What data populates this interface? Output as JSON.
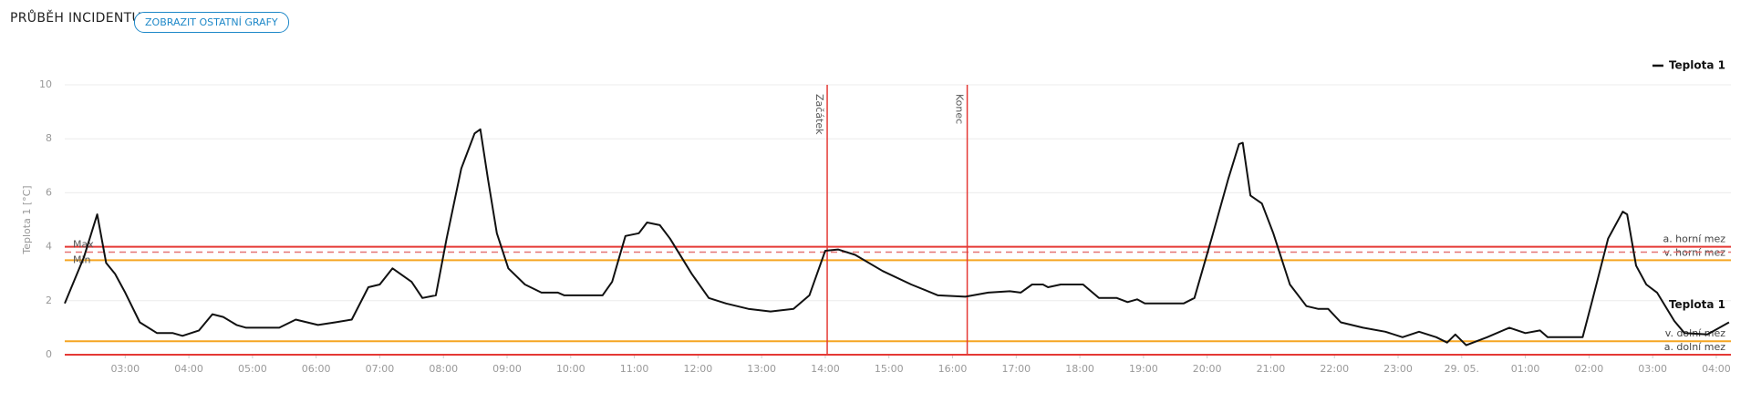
{
  "header": {
    "title": "PRŮBĚH INCIDENTU",
    "button": "ZOBRAZIT OSTATNÍ GRAFY"
  },
  "chart_data": {
    "type": "line",
    "ylabel": "Teplota 1 [°C]",
    "x": [
      2.05,
      2.35,
      2.56,
      2.7,
      2.84,
      3.0,
      3.23,
      3.5,
      3.75,
      3.9,
      4.16,
      4.37,
      4.54,
      4.75,
      4.9,
      5.42,
      5.68,
      6.03,
      6.3,
      6.56,
      6.82,
      7.0,
      7.2,
      7.5,
      7.67,
      7.88,
      8.05,
      8.28,
      8.49,
      8.58,
      8.7,
      8.84,
      9.02,
      9.28,
      9.54,
      9.8,
      9.9,
      10.5,
      10.65,
      10.86,
      11.07,
      11.2,
      11.4,
      11.56,
      11.9,
      12.17,
      12.44,
      12.79,
      13.14,
      13.5,
      13.75,
      14.0,
      14.2,
      14.47,
      14.9,
      15.35,
      15.77,
      16.2,
      16.56,
      16.9,
      17.07,
      17.25,
      17.42,
      17.5,
      17.7,
      18.05,
      18.3,
      18.58,
      18.75,
      18.9,
      19.02,
      19.63,
      19.8,
      20.07,
      20.33,
      20.5,
      20.56,
      20.68,
      20.86,
      21.04,
      21.3,
      21.56,
      21.74,
      21.9,
      22.1,
      22.45,
      22.8,
      23.07,
      23.33,
      23.6,
      23.77,
      23.9,
      24.07,
      24.4,
      24.75,
      25.0,
      25.23,
      25.35,
      25.9,
      26.05,
      26.3,
      26.53,
      26.6,
      26.74,
      26.9,
      27.07,
      27.34,
      27.5,
      27.86,
      28.2
    ],
    "series": [
      {
        "name": "Teplota 1",
        "color": "#111111",
        "values": [
          1.9,
          3.6,
          5.2,
          3.4,
          3.0,
          2.3,
          1.2,
          0.8,
          0.8,
          0.7,
          0.9,
          1.5,
          1.4,
          1.1,
          1.0,
          1.0,
          1.3,
          1.1,
          1.2,
          1.3,
          2.5,
          2.6,
          3.2,
          2.7,
          2.1,
          2.2,
          4.3,
          6.9,
          8.2,
          8.35,
          6.5,
          4.5,
          3.2,
          2.6,
          2.3,
          2.3,
          2.2,
          2.2,
          2.7,
          4.4,
          4.5,
          4.9,
          4.8,
          4.3,
          3.0,
          2.1,
          1.9,
          1.7,
          1.6,
          1.7,
          2.2,
          3.85,
          3.9,
          3.7,
          3.1,
          2.6,
          2.2,
          2.15,
          2.3,
          2.35,
          2.3,
          2.6,
          2.6,
          2.5,
          2.6,
          2.6,
          2.1,
          2.1,
          1.95,
          2.05,
          1.9,
          1.9,
          2.1,
          4.3,
          6.5,
          7.8,
          7.85,
          5.9,
          5.6,
          4.5,
          2.6,
          1.8,
          1.7,
          1.7,
          1.2,
          1.0,
          0.85,
          0.65,
          0.85,
          0.65,
          0.45,
          0.75,
          0.35,
          0.65,
          1.0,
          0.8,
          0.9,
          0.65,
          0.65,
          2.0,
          4.3,
          5.3,
          5.2,
          3.3,
          2.6,
          2.3,
          1.25,
          0.8,
          0.75,
          1.2
        ]
      }
    ],
    "xlim": [
      2.05,
      28.23
    ],
    "xticks": [
      {
        "value": 3,
        "label": "03:00"
      },
      {
        "value": 4,
        "label": "04:00"
      },
      {
        "value": 5,
        "label": "05:00"
      },
      {
        "value": 6,
        "label": "06:00"
      },
      {
        "value": 7,
        "label": "07:00"
      },
      {
        "value": 8,
        "label": "08:00"
      },
      {
        "value": 9,
        "label": "09:00"
      },
      {
        "value": 10,
        "label": "10:00"
      },
      {
        "value": 11,
        "label": "11:00"
      },
      {
        "value": 12,
        "label": "12:00"
      },
      {
        "value": 13,
        "label": "13:00"
      },
      {
        "value": 14,
        "label": "14:00"
      },
      {
        "value": 15,
        "label": "15:00"
      },
      {
        "value": 16,
        "label": "16:00"
      },
      {
        "value": 17,
        "label": "17:00"
      },
      {
        "value": 18,
        "label": "18:00"
      },
      {
        "value": 19,
        "label": "19:00"
      },
      {
        "value": 20,
        "label": "20:00"
      },
      {
        "value": 21,
        "label": "21:00"
      },
      {
        "value": 22,
        "label": "22:00"
      },
      {
        "value": 23,
        "label": "23:00"
      },
      {
        "value": 24,
        "label": "29. 05."
      },
      {
        "value": 25,
        "label": "01:00"
      },
      {
        "value": 26,
        "label": "02:00"
      },
      {
        "value": 27,
        "label": "03:00"
      },
      {
        "value": 28,
        "label": "04:00"
      }
    ],
    "ylim": [
      0,
      10
    ],
    "yticks": [
      0,
      2,
      4,
      6,
      8,
      10
    ],
    "grid": true,
    "legend": "top-right",
    "thresholds": [
      {
        "label": "a. horní mez",
        "value": 4,
        "color": "#e53935"
      },
      {
        "label": "v. horní mez",
        "value": 3.5,
        "color": "#f5a623"
      },
      {
        "label": "v. dolní mez",
        "value": 0.5,
        "color": "#f5a623"
      },
      {
        "label": "a. dolní mez",
        "value": 0,
        "color": "#e53935"
      }
    ],
    "limits": [
      {
        "label": "Max",
        "value": 3.8,
        "color": "#e57373"
      },
      {
        "label": "Min",
        "value": 3.8,
        "color": "#e57373"
      }
    ],
    "markers": [
      {
        "label": "Začátek",
        "x": 14.03,
        "color": "#e53935"
      },
      {
        "label": "Konec",
        "x": 16.23,
        "color": "#e53935"
      }
    ]
  }
}
